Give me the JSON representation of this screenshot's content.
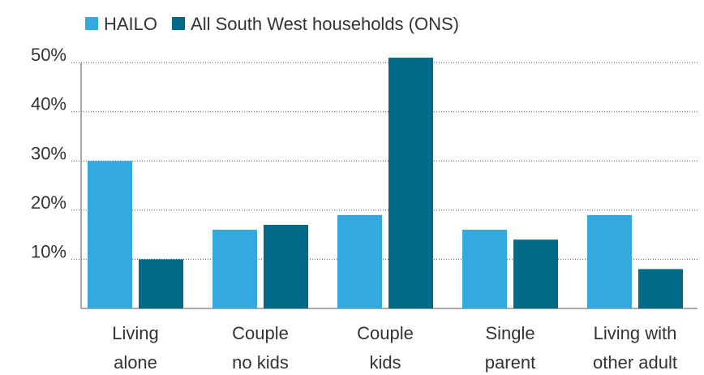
{
  "chart_data": {
    "type": "bar",
    "categories": [
      [
        "Living",
        "alone"
      ],
      [
        "Couple",
        "no kids"
      ],
      [
        "Couple",
        "kids"
      ],
      [
        "Single",
        "parent"
      ],
      [
        "Living with",
        "other adult"
      ]
    ],
    "series": [
      {
        "name": "HAILO",
        "color": "#35a8e0",
        "values": [
          30,
          16,
          19,
          16,
          19
        ]
      },
      {
        "name": "All South West households (ONS)",
        "color": "#006a87",
        "values": [
          10,
          17,
          51,
          14,
          8
        ]
      }
    ],
    "ylim": [
      0,
      52
    ],
    "yticks": [
      {
        "value": 10,
        "label": "10%"
      },
      {
        "value": 20,
        "label": "20%"
      },
      {
        "value": 30,
        "label": "30%"
      },
      {
        "value": 40,
        "label": "40%"
      },
      {
        "value": 50,
        "label": "50%"
      }
    ],
    "grid": true,
    "legend": "top"
  }
}
